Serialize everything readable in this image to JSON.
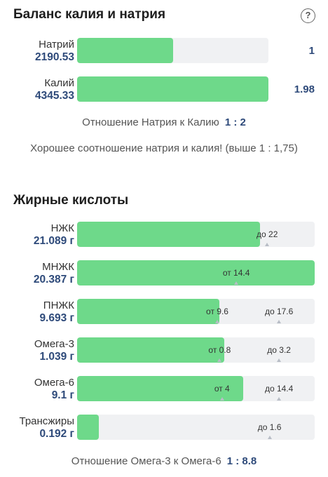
{
  "balance": {
    "title": "Баланс калия и натрия",
    "help_icon": "question-circle-icon",
    "rows": [
      {
        "name": "Натрий",
        "value": "2190.53",
        "fill": 0.5,
        "ratio": "1"
      },
      {
        "name": "Калий",
        "value": "4345.33",
        "fill": 1.0,
        "ratio": "1.98"
      }
    ],
    "ratio_label": "Отношение Натрия к Калию",
    "ratio_value": "1 : 2",
    "note": "Хорошее соотношение натрия и калия! (выше 1 : 1,75)"
  },
  "fatty": {
    "title": "Жирные кислоты",
    "rows": [
      {
        "name": "НЖК",
        "value": "21.089 г",
        "fill": 0.77,
        "ticks": [
          {
            "label": "до 22",
            "pos": 0.8
          }
        ]
      },
      {
        "name": "МНЖК",
        "value": "20.387 г",
        "fill": 1.0,
        "ticks": [
          {
            "label": "от 14.4",
            "pos": 0.67
          }
        ]
      },
      {
        "name": "ПНЖК",
        "value": "9.693 г",
        "fill": 0.6,
        "ticks": [
          {
            "label": "от 9.6",
            "pos": 0.59
          },
          {
            "label": "до 17.6",
            "pos": 0.85
          }
        ]
      },
      {
        "name": "Омега-3",
        "value": "1.039 г",
        "fill": 0.62,
        "ticks": [
          {
            "label": "от 0.8",
            "pos": 0.6
          },
          {
            "label": "до 3.2",
            "pos": 0.85
          }
        ]
      },
      {
        "name": "Омега-6",
        "value": "9.1 г",
        "fill": 0.7,
        "ticks": [
          {
            "label": "от 4",
            "pos": 0.61
          },
          {
            "label": "до 14.4",
            "pos": 0.85
          }
        ]
      },
      {
        "name": "Трансжиры",
        "value": "0.192 г",
        "fill": 0.09,
        "ticks": [
          {
            "label": "до 1.6",
            "pos": 0.81
          }
        ]
      }
    ],
    "ratio_label": "Отношение Омега-3 к Омега-6",
    "ratio_value": "1 : 8.8"
  },
  "colors": {
    "fill": "#6ed98a",
    "track": "#f0f1f3",
    "value": "#2e4a7a"
  }
}
